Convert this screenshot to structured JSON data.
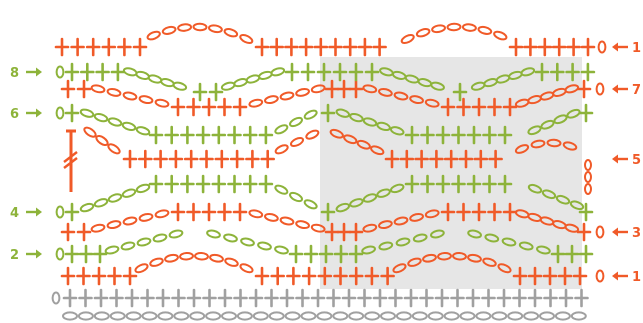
{
  "colors": {
    "orange": "#f05a28",
    "green": "#8db33a",
    "grey": "#a0a0a0",
    "shade": "#e6e6e6"
  },
  "legend_symbols": {
    "double_crochet": "cross",
    "chain": "oval",
    "start_chain": "ring",
    "arrow": "arrow-icon"
  },
  "row_labels": {
    "left": [
      {
        "text": "8",
        "row": "r8"
      },
      {
        "text": "6",
        "row": "r6"
      },
      {
        "text": "4",
        "row": "r4"
      },
      {
        "text": "2",
        "row": "r2"
      }
    ],
    "right": [
      {
        "text": "1",
        "row": "top"
      },
      {
        "text": "7",
        "row": "r7"
      },
      {
        "text": "5",
        "row": "r5"
      },
      {
        "text": "3",
        "row": "r3"
      },
      {
        "text": "1",
        "row": "r1"
      }
    ]
  },
  "rows": {
    "top": {
      "y": 47,
      "color": "orange"
    },
    "r8": {
      "y": 72,
      "color": "green"
    },
    "r7": {
      "y": 89,
      "color": "orange"
    },
    "r6": {
      "y": 113,
      "color": "green"
    },
    "r5": {
      "y": 159,
      "color": "orange"
    },
    "r4": {
      "y": 212,
      "color": "green"
    },
    "r3": {
      "y": 232,
      "color": "orange"
    },
    "r2": {
      "y": 254,
      "color": "green"
    },
    "r1": {
      "y": 276,
      "color": "orange"
    },
    "base": {
      "y": 298,
      "color": "grey"
    }
  }
}
